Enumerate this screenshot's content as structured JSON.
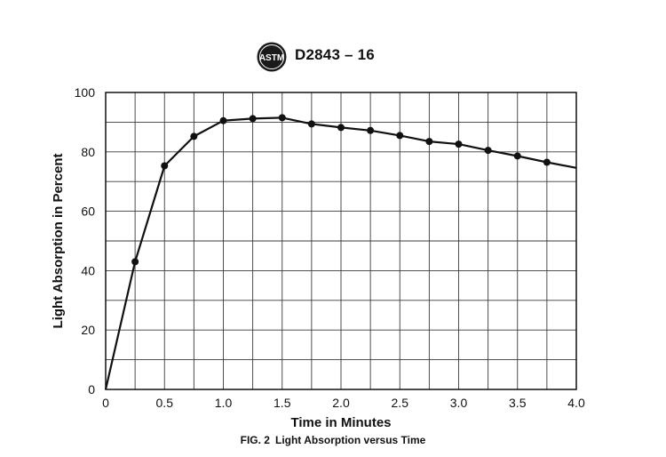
{
  "header": {
    "logo_icon": "astm-logo",
    "logo_text": "ASTM",
    "doc_id": "D2843 – 16"
  },
  "caption": {
    "label": "FIG. 2",
    "text": "Light Absorption versus Time"
  },
  "chart_data": {
    "type": "line",
    "title": "",
    "xlabel": "Time in Minutes",
    "ylabel": "Light Absorption in Percent",
    "xlim": [
      0,
      4.0
    ],
    "ylim": [
      0,
      100
    ],
    "grid": true,
    "legend": "none",
    "x_ticks": [
      "0",
      "0.5",
      "1.0",
      "1.5",
      "2.0",
      "2.5",
      "3.0",
      "3.5",
      "4.0"
    ],
    "y_ticks": [
      "0",
      "20",
      "40",
      "60",
      "80",
      "100"
    ],
    "series": [
      {
        "x": [
          0,
          0.25,
          0.5,
          0.75,
          1.0,
          1.25,
          1.5,
          1.75,
          2.0,
          2.25,
          2.5,
          2.75,
          3.0,
          3.25,
          3.5,
          3.75,
          4.0
        ],
        "y": [
          0,
          43,
          75.3,
          85.2,
          90.5,
          91.2,
          91.5,
          89.4,
          88.2,
          87.2,
          85.5,
          83.5,
          82.6,
          80.5,
          78.6,
          76.5,
          74.6
        ],
        "markers": [
          false,
          true,
          true,
          true,
          true,
          true,
          true,
          true,
          true,
          true,
          true,
          true,
          true,
          true,
          true,
          true,
          false
        ]
      }
    ],
    "colors": {
      "line": "#111111",
      "grid": "#3a3a3a"
    }
  }
}
